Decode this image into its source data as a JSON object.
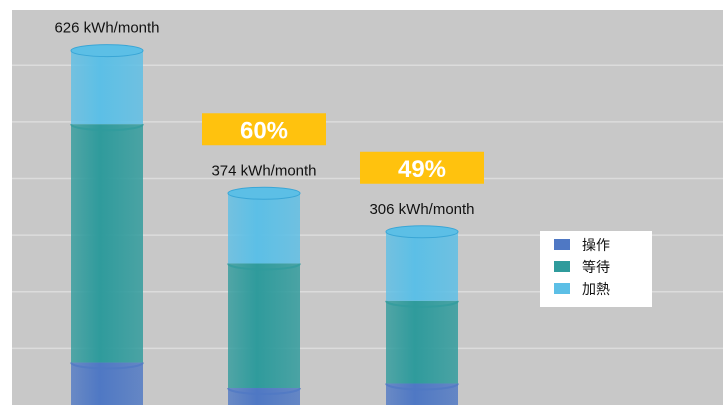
{
  "chart_data": {
    "type": "bar",
    "stacked": true,
    "style": "3d-cylinder",
    "categories": [
      "",
      "",
      ""
    ],
    "total_labels": [
      "626 kWh/month",
      "374 kWh/month",
      "306 kWh/month"
    ],
    "totals": [
      626,
      374,
      306
    ],
    "percent_badges": [
      "",
      "60%",
      "49%"
    ],
    "series": [
      {
        "name": "操作",
        "values": [
          75,
          30,
          38
        ],
        "color": "#4f78c4"
      },
      {
        "name": "等待",
        "values": [
          421,
          220,
          146
        ],
        "color": "#2f9b9c"
      },
      {
        "name": "加熱",
        "values": [
          130,
          124,
          122
        ],
        "color": "#5cbfe6"
      }
    ],
    "ylim": [
      0,
      680
    ],
    "grid": true,
    "legend_position": "right",
    "colors": {
      "background": "#c8c8c8",
      "grid": "#dcdcdc",
      "badge": "#ffc20e",
      "badge_text": "#ffffff",
      "label_text": "#111111"
    }
  }
}
